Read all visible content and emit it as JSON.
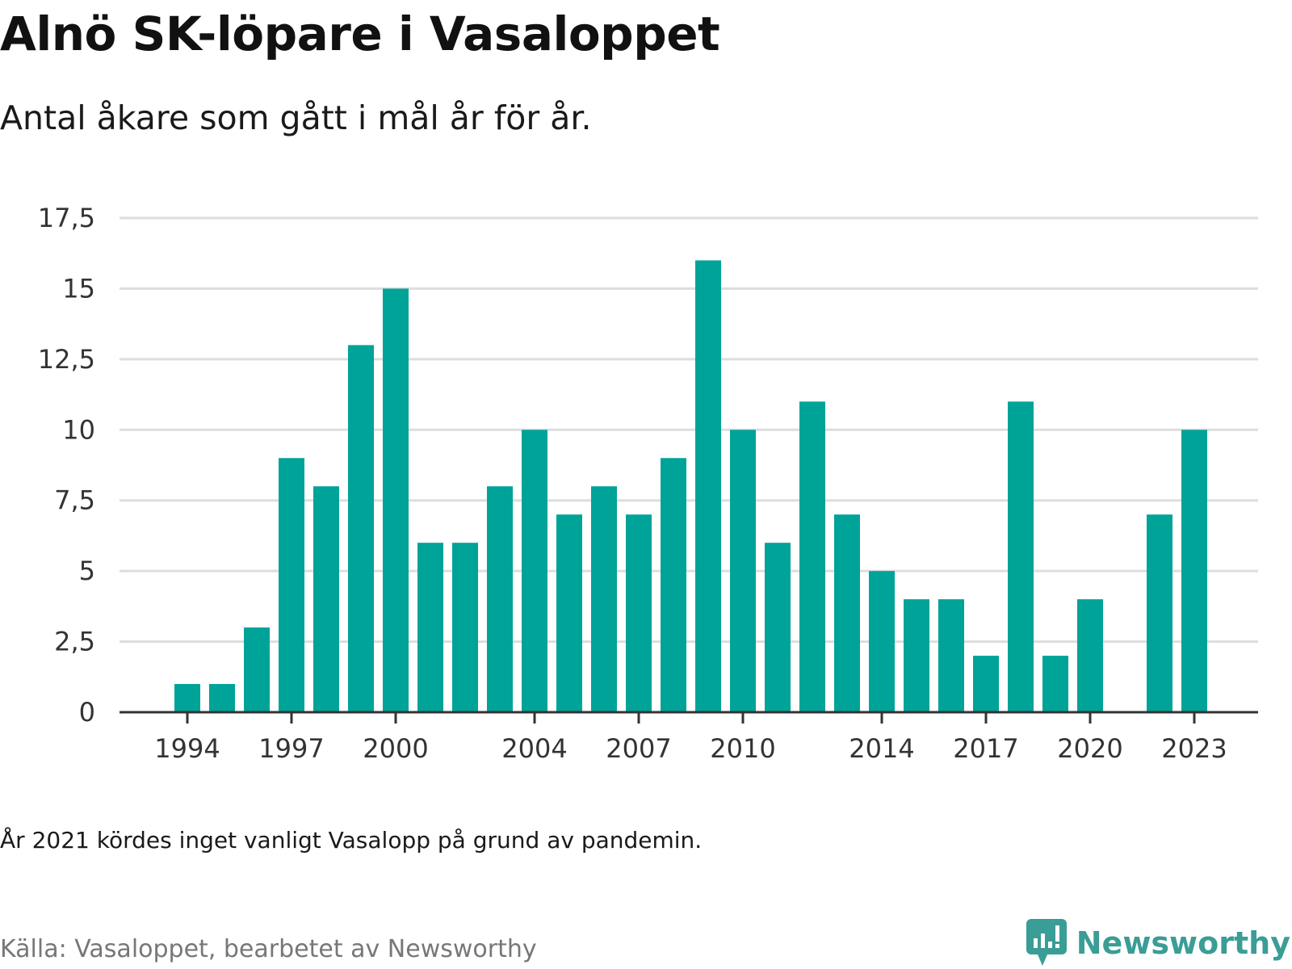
{
  "title": "Alnö SK-löpare i Vasaloppet",
  "subtitle": "Antal åkare som gått i mål år för år.",
  "note": "År 2021 kördes inget vanligt Vasalopp på grund av pandemin.",
  "source": "Källa: Vasaloppet, bearbetet av Newsworthy",
  "brand": {
    "name": "Newsworthy",
    "icon": "newsworthy-logo-icon",
    "color": "#3a9d96"
  },
  "chart_data": {
    "type": "bar",
    "bar_color": "#00a398",
    "grid": true,
    "ylim": [
      0,
      17.5
    ],
    "y_ticks": [
      "0",
      "2,5",
      "5",
      "7,5",
      "10",
      "12,5",
      "15",
      "17,5"
    ],
    "x_ticks": [
      "1994",
      "1997",
      "2000",
      "2004",
      "2007",
      "2010",
      "2014",
      "2017",
      "2020",
      "2023"
    ],
    "categories": [
      "1994",
      "1995",
      "1996",
      "1997",
      "1998",
      "1999",
      "2000",
      "2001",
      "2002",
      "2003",
      "2004",
      "2005",
      "2006",
      "2007",
      "2008",
      "2009",
      "2010",
      "2011",
      "2012",
      "2013",
      "2014",
      "2015",
      "2016",
      "2017",
      "2018",
      "2019",
      "2020",
      "2021",
      "2022",
      "2023"
    ],
    "values": [
      1,
      1,
      3,
      9,
      8,
      13,
      15,
      6,
      6,
      8,
      10,
      7,
      8,
      7,
      9,
      16,
      10,
      6,
      11,
      7,
      5,
      4,
      4,
      2,
      11,
      2,
      4,
      null,
      7,
      10
    ]
  }
}
